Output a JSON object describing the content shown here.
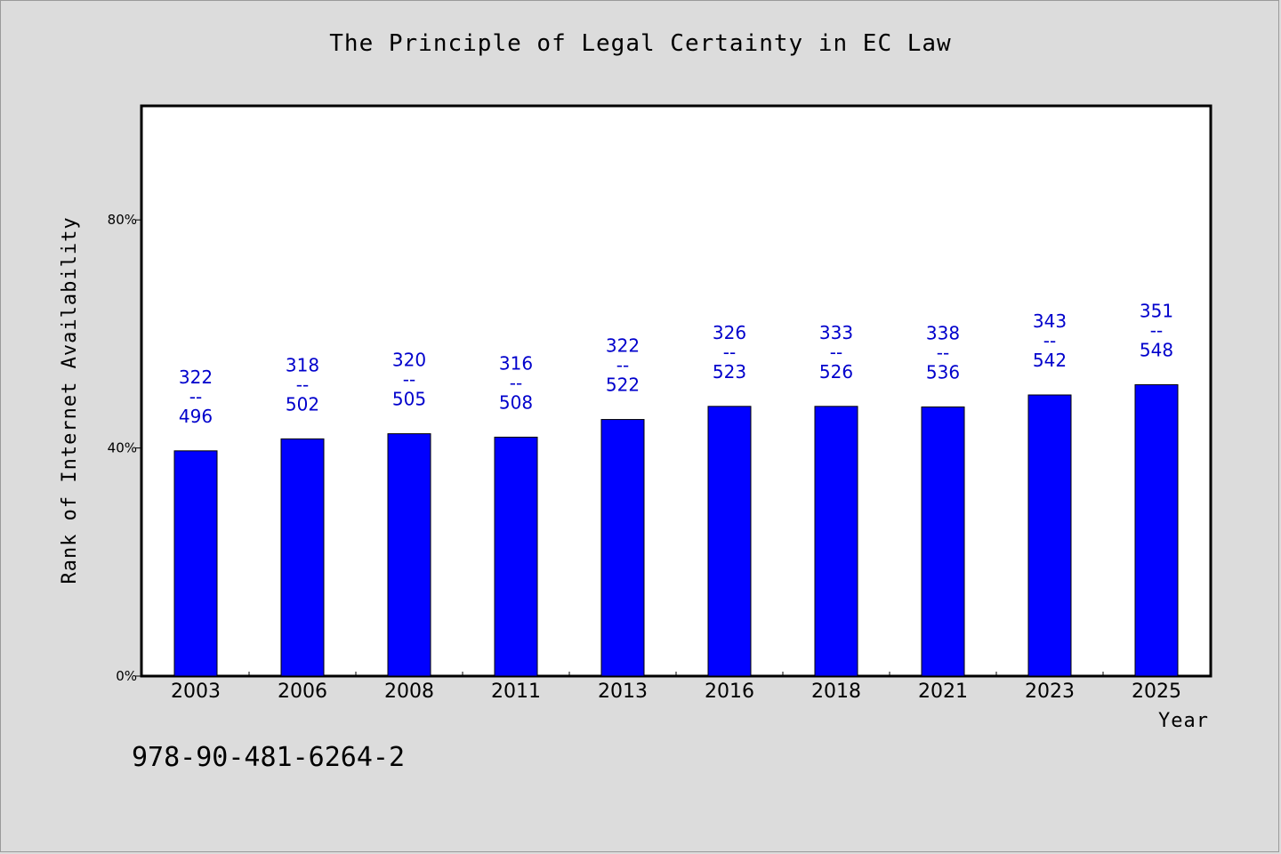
{
  "chart_data": {
    "type": "bar",
    "title": "The Principle of Legal Certainty in EC Law",
    "xlabel": "Year",
    "ylabel": "Rank of Internet Availability",
    "categories": [
      "2003",
      "2006",
      "2008",
      "2011",
      "2013",
      "2016",
      "2018",
      "2021",
      "2023",
      "2025"
    ],
    "values": [
      39.5,
      41.6,
      42.5,
      41.9,
      45.0,
      47.3,
      47.3,
      47.2,
      49.3,
      51.1
    ],
    "bar_labels": [
      [
        "322",
        "--",
        "496"
      ],
      [
        "318",
        "--",
        "502"
      ],
      [
        "320",
        "--",
        "505"
      ],
      [
        "316",
        "--",
        "508"
      ],
      [
        "322",
        "--",
        "522"
      ],
      [
        "326",
        "--",
        "523"
      ],
      [
        "333",
        "--",
        "526"
      ],
      [
        "338",
        "--",
        "536"
      ],
      [
        "343",
        "--",
        "542"
      ],
      [
        "351",
        "--",
        "548"
      ]
    ],
    "yticks": [
      0,
      40,
      80
    ],
    "ytick_labels": [
      "0%",
      "40%",
      "80%"
    ],
    "ylim": [
      0,
      100
    ],
    "grid": false,
    "legend": "none",
    "bar_color": "#0000ff",
    "label_color": "#0000cc"
  },
  "footer": {
    "isbn": "978-90-481-6264-2"
  }
}
